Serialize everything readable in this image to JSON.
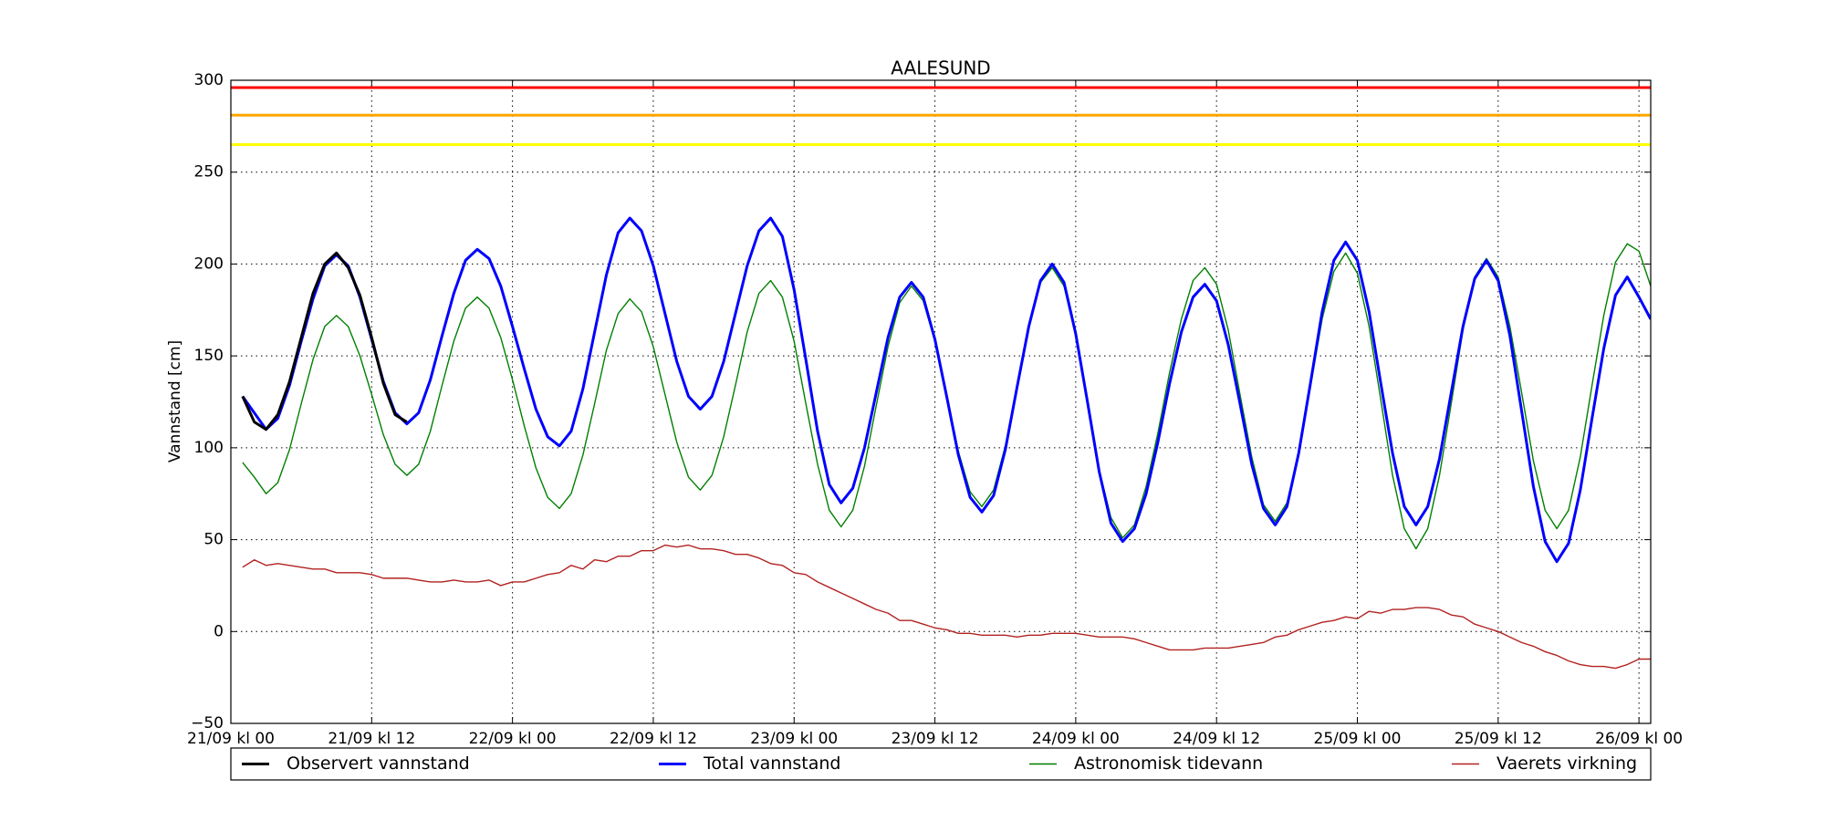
{
  "chart_data": {
    "type": "line",
    "title": "AALESUND",
    "ylabel": "Vannstand [cm]",
    "xlim": [
      0,
      121
    ],
    "ylim": [
      -50,
      300
    ],
    "xticks": [
      {
        "value": 0,
        "label": "21/09 kl 00"
      },
      {
        "value": 12,
        "label": "21/09 kl 12"
      },
      {
        "value": 24,
        "label": "22/09 kl 00"
      },
      {
        "value": 36,
        "label": "22/09 kl 12"
      },
      {
        "value": 48,
        "label": "23/09 kl 00"
      },
      {
        "value": 60,
        "label": "23/09 kl 12"
      },
      {
        "value": 72,
        "label": "24/09 kl 00"
      },
      {
        "value": 84,
        "label": "24/09 kl 12"
      },
      {
        "value": 96,
        "label": "25/09 kl 00"
      },
      {
        "value": 108,
        "label": "25/09 kl 12"
      },
      {
        "value": 120,
        "label": "26/09 kl 00"
      }
    ],
    "yticks": [
      {
        "value": -50,
        "label": "−50"
      },
      0,
      50,
      100,
      150,
      200,
      250,
      300
    ],
    "grid": true,
    "reference_lines": [
      {
        "value": 296,
        "color": "#ff0000"
      },
      {
        "value": 281,
        "color": "#ffa500"
      },
      {
        "value": 265,
        "color": "#ffff00"
      }
    ],
    "series": [
      {
        "name": "Observert vannstand",
        "color": "#000000",
        "linewidth": 3,
        "x": [
          1,
          2,
          3,
          4,
          5,
          6,
          7,
          8,
          9,
          10,
          11,
          12,
          13,
          14,
          15
        ],
        "values": [
          128,
          114,
          110,
          118,
          136,
          160,
          184,
          200,
          206,
          198,
          183,
          160,
          135,
          118,
          114
        ]
      },
      {
        "name": "Total vannstand",
        "color": "#0000ff",
        "linewidth": 3,
        "x": [
          1,
          2,
          3,
          4,
          5,
          6,
          7,
          8,
          9,
          10,
          11,
          12,
          13,
          14,
          15,
          16,
          17,
          18,
          19,
          20,
          21,
          22,
          23,
          24,
          25,
          26,
          27,
          28,
          29,
          30,
          31,
          32,
          33,
          34,
          35,
          36,
          37,
          38,
          39,
          40,
          41,
          42,
          43,
          44,
          45,
          46,
          47,
          48,
          49,
          50,
          51,
          52,
          53,
          54,
          55,
          56,
          57,
          58,
          59,
          60,
          61,
          62,
          63,
          64,
          65,
          66,
          67,
          68,
          69,
          70,
          71,
          72,
          73,
          74,
          75,
          76,
          77,
          78,
          79,
          80,
          81,
          82,
          83,
          84,
          85,
          86,
          87,
          88,
          89,
          90,
          91,
          92,
          93,
          94,
          95,
          96,
          97,
          98,
          99,
          100,
          101,
          102,
          103,
          104,
          105,
          106,
          107,
          108,
          109,
          110,
          111,
          112,
          113,
          114,
          115,
          116,
          117,
          118,
          119,
          120,
          121
        ],
        "values": [
          128,
          119,
          110,
          116,
          134,
          158,
          181,
          199,
          205,
          199,
          182,
          159,
          136,
          119,
          113,
          119,
          137,
          161,
          184,
          202,
          208,
          203,
          188,
          166,
          143,
          121,
          106,
          101,
          109,
          132,
          163,
          194,
          217,
          225,
          218,
          199,
          173,
          147,
          128,
          121,
          128,
          147,
          173,
          199,
          218,
          225,
          215,
          186,
          148,
          109,
          80,
          70,
          78,
          100,
          130,
          160,
          182,
          190,
          182,
          159,
          128,
          96,
          73,
          65,
          74,
          99,
          133,
          166,
          191,
          200,
          190,
          162,
          125,
          87,
          59,
          49,
          56,
          75,
          103,
          135,
          163,
          182,
          189,
          180,
          156,
          124,
          91,
          67,
          58,
          68,
          97,
          135,
          174,
          202,
          212,
          202,
          174,
          135,
          97,
          68,
          58,
          68,
          94,
          130,
          166,
          192,
          202,
          191,
          161,
          120,
          79,
          49,
          38,
          48,
          77,
          116,
          154,
          183,
          193,
          182,
          170
        ]
      },
      {
        "name": "Astronomisk tidevann",
        "color": "#008000",
        "linewidth": 1.4,
        "x": [
          1,
          2,
          3,
          4,
          5,
          6,
          7,
          8,
          9,
          10,
          11,
          12,
          13,
          14,
          15,
          16,
          17,
          18,
          19,
          20,
          21,
          22,
          23,
          24,
          25,
          26,
          27,
          28,
          29,
          30,
          31,
          32,
          33,
          34,
          35,
          36,
          37,
          38,
          39,
          40,
          41,
          42,
          43,
          44,
          45,
          46,
          47,
          48,
          49,
          50,
          51,
          52,
          53,
          54,
          55,
          56,
          57,
          58,
          59,
          60,
          61,
          62,
          63,
          64,
          65,
          66,
          67,
          68,
          69,
          70,
          71,
          72,
          73,
          74,
          75,
          76,
          77,
          78,
          79,
          80,
          81,
          82,
          83,
          84,
          85,
          86,
          87,
          88,
          89,
          90,
          91,
          92,
          93,
          94,
          95,
          96,
          97,
          98,
          99,
          100,
          101,
          102,
          103,
          104,
          105,
          106,
          107,
          108,
          109,
          110,
          111,
          112,
          113,
          114,
          115,
          116,
          117,
          118,
          119,
          120,
          121
        ],
        "values": [
          92,
          84,
          75,
          81,
          99,
          124,
          148,
          166,
          172,
          166,
          150,
          129,
          107,
          91,
          85,
          91,
          109,
          134,
          158,
          176,
          182,
          176,
          160,
          137,
          112,
          89,
          73,
          67,
          75,
          96,
          124,
          153,
          173,
          181,
          174,
          155,
          129,
          103,
          84,
          77,
          85,
          106,
          134,
          163,
          184,
          191,
          182,
          158,
          124,
          91,
          66,
          57,
          66,
          90,
          123,
          155,
          179,
          188,
          180,
          158,
          128,
          98,
          76,
          68,
          77,
          101,
          133,
          166,
          190,
          198,
          188,
          161,
          125,
          88,
          62,
          51,
          58,
          79,
          108,
          141,
          170,
          191,
          198,
          189,
          164,
          129,
          95,
          69,
          60,
          70,
          97,
          133,
          170,
          196,
          206,
          195,
          166,
          126,
          85,
          56,
          45,
          56,
          85,
          124,
          164,
          193,
          203,
          193,
          166,
          130,
          93,
          66,
          56,
          66,
          95,
          134,
          172,
          201,
          211,
          207,
          188
        ]
      },
      {
        "name": "Vaerets virkning",
        "color": "#b22222",
        "linewidth": 1.4,
        "x": [
          1,
          2,
          3,
          4,
          5,
          6,
          7,
          8,
          9,
          10,
          11,
          12,
          13,
          14,
          15,
          16,
          17,
          18,
          19,
          20,
          21,
          22,
          23,
          24,
          25,
          26,
          27,
          28,
          29,
          30,
          31,
          32,
          33,
          34,
          35,
          36,
          37,
          38,
          39,
          40,
          41,
          42,
          43,
          44,
          45,
          46,
          47,
          48,
          49,
          50,
          51,
          52,
          53,
          54,
          55,
          56,
          57,
          58,
          59,
          60,
          61,
          62,
          63,
          64,
          65,
          66,
          67,
          68,
          69,
          70,
          71,
          72,
          73,
          74,
          75,
          76,
          77,
          78,
          79,
          80,
          81,
          82,
          83,
          84,
          85,
          86,
          87,
          88,
          89,
          90,
          91,
          92,
          93,
          94,
          95,
          96,
          97,
          98,
          99,
          100,
          101,
          102,
          103,
          104,
          105,
          106,
          107,
          108,
          109,
          110,
          111,
          112,
          113,
          114,
          115,
          116,
          117,
          118,
          119,
          120,
          121
        ],
        "values": [
          35,
          39,
          36,
          37,
          36,
          35,
          34,
          34,
          32,
          32,
          32,
          31,
          29,
          29,
          29,
          28,
          27,
          27,
          28,
          27,
          27,
          28,
          25,
          27,
          27,
          29,
          31,
          32,
          36,
          34,
          39,
          38,
          41,
          41,
          44,
          44,
          47,
          46,
          47,
          45,
          45,
          44,
          42,
          42,
          40,
          37,
          36,
          32,
          31,
          27,
          24,
          21,
          18,
          15,
          12,
          10,
          6,
          6,
          4,
          2,
          1,
          -1,
          -1,
          -2,
          -2,
          -2,
          -3,
          -2,
          -2,
          -1,
          -1,
          -1,
          -2,
          -3,
          -3,
          -3,
          -4,
          -6,
          -8,
          -10,
          -10,
          -10,
          -9,
          -9,
          -9,
          -8,
          -7,
          -6,
          -3,
          -2,
          1,
          3,
          5,
          6,
          8,
          7,
          11,
          10,
          12,
          12,
          13,
          13,
          12,
          9,
          8,
          4,
          2,
          0,
          -3,
          -6,
          -8,
          -11,
          -13,
          -16,
          -18,
          -19,
          -19,
          -20,
          -18,
          -15,
          -15
        ]
      }
    ]
  }
}
